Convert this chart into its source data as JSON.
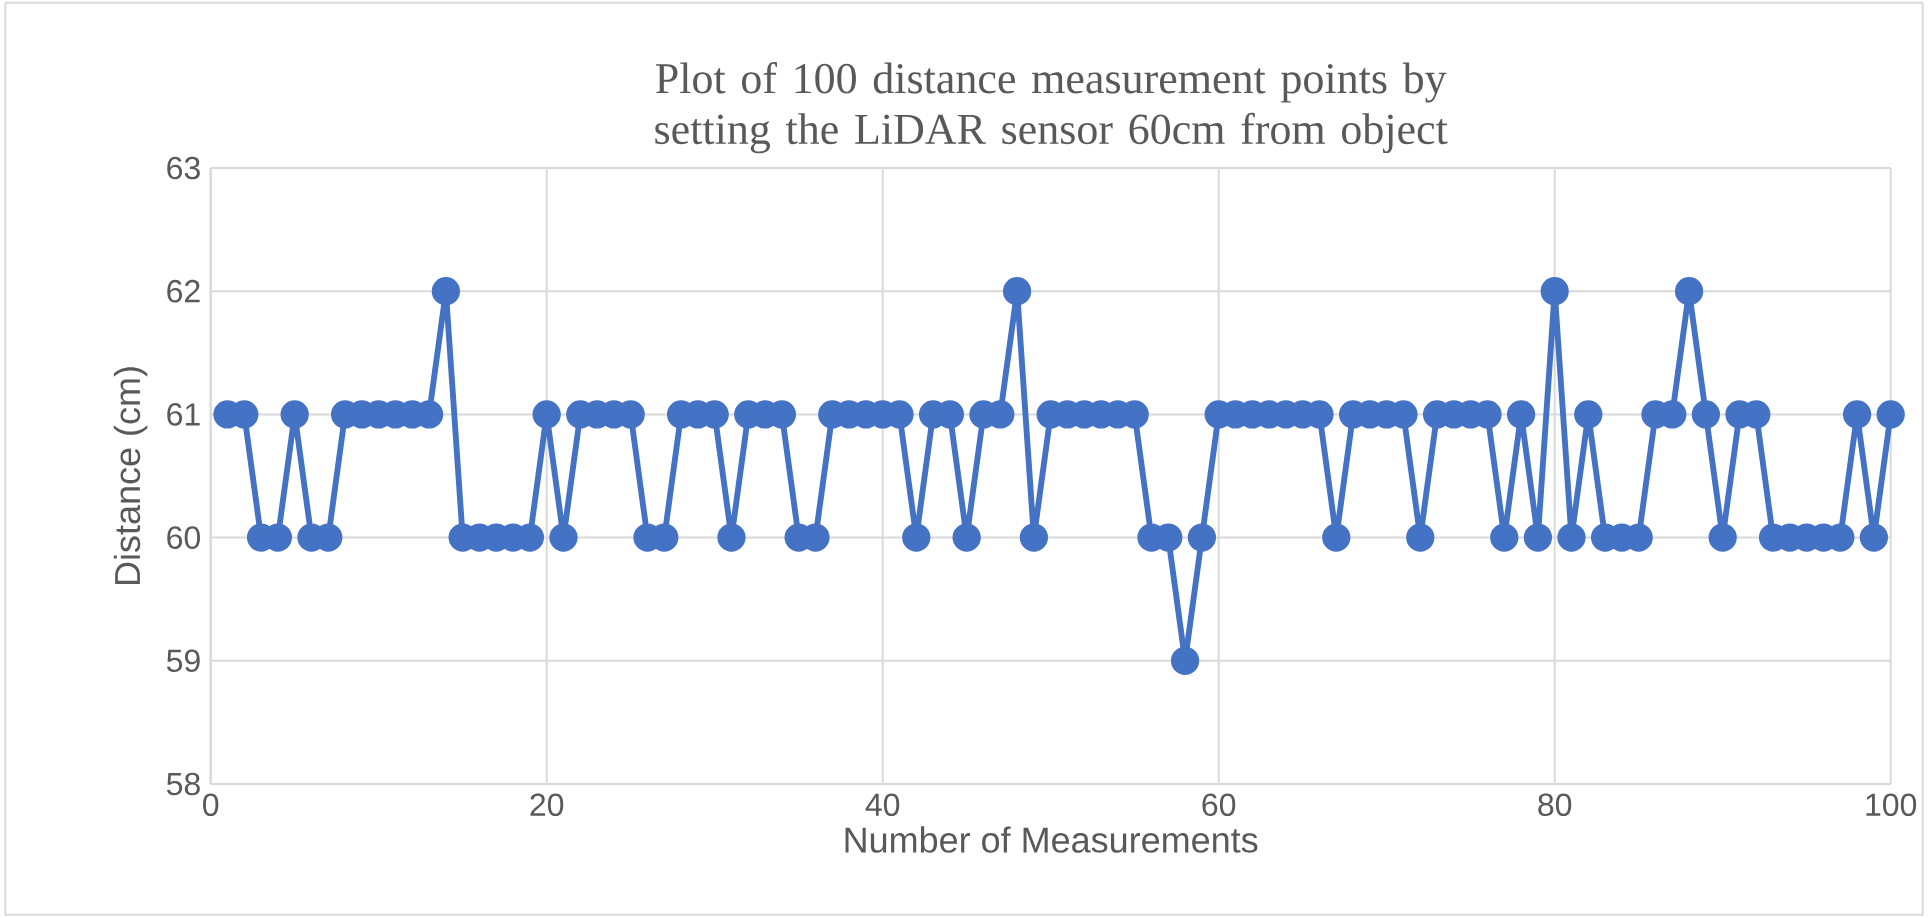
{
  "chart_data": {
    "type": "line",
    "title": "Plot of 100 distance measurement points by setting the LiDAR sensor 60cm from object",
    "xlabel": "Number of Measurements",
    "ylabel": "Distance (cm)",
    "x": [
      1,
      2,
      3,
      4,
      5,
      6,
      7,
      8,
      9,
      10,
      11,
      12,
      13,
      14,
      15,
      16,
      17,
      18,
      19,
      20,
      21,
      22,
      23,
      24,
      25,
      26,
      27,
      28,
      29,
      30,
      31,
      32,
      33,
      34,
      35,
      36,
      37,
      38,
      39,
      40,
      41,
      42,
      43,
      44,
      45,
      46,
      47,
      48,
      49,
      50,
      51,
      52,
      53,
      54,
      55,
      56,
      57,
      58,
      59,
      60,
      61,
      62,
      63,
      64,
      65,
      66,
      67,
      68,
      69,
      70,
      71,
      72,
      73,
      74,
      75,
      76,
      77,
      78,
      79,
      80,
      81,
      82,
      83,
      84,
      85,
      86,
      87,
      88,
      89,
      90,
      91,
      92,
      93,
      94,
      95,
      96,
      97,
      98,
      99,
      100
    ],
    "values": [
      61,
      61,
      60,
      60,
      61,
      60,
      60,
      61,
      61,
      61,
      61,
      61,
      61,
      62,
      60,
      60,
      60,
      60,
      60,
      61,
      60,
      61,
      61,
      61,
      61,
      60,
      60,
      61,
      61,
      61,
      60,
      61,
      61,
      61,
      60,
      60,
      61,
      61,
      61,
      61,
      61,
      60,
      61,
      61,
      60,
      61,
      61,
      62,
      60,
      61,
      61,
      61,
      61,
      61,
      61,
      60,
      60,
      59,
      60,
      61,
      61,
      61,
      61,
      61,
      61,
      61,
      60,
      61,
      61,
      61,
      61,
      60,
      61,
      61,
      61,
      61,
      60,
      61,
      60,
      62,
      60,
      61,
      60,
      60,
      60,
      61,
      61,
      62,
      61,
      60,
      61,
      61,
      60,
      60,
      60,
      60,
      60,
      61,
      60,
      61
    ],
    "color": "#4472c4",
    "marker": "circle",
    "line_style": "solid",
    "grid": true,
    "xlim": [
      0,
      100
    ],
    "xticks": [
      0,
      20,
      40,
      60,
      80,
      100
    ],
    "ylim": [
      58,
      63
    ],
    "yticks": [
      58,
      59,
      60,
      61,
      62,
      63
    ]
  }
}
